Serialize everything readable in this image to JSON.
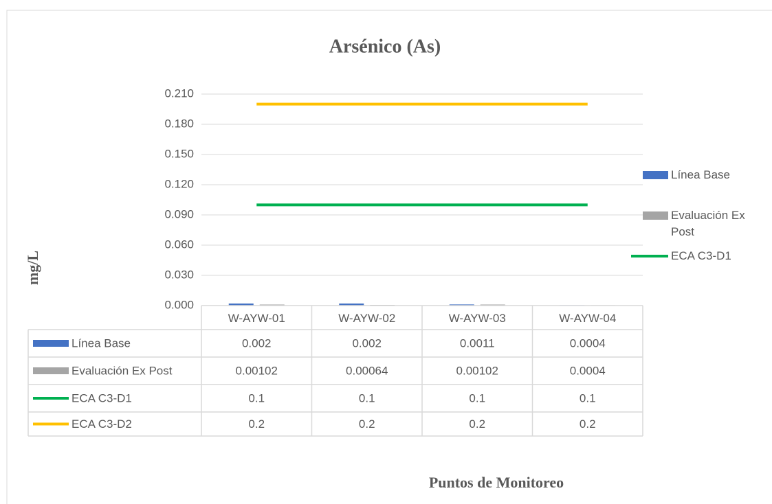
{
  "chart_data": {
    "type": "bar",
    "title": "Arsénico (As)",
    "y_label": "mg/L",
    "x_label": "Puntos de Monitoreo",
    "categories": [
      "W-AYW-01",
      "W-AYW-02",
      "W-AYW-03",
      "W-AYW-04"
    ],
    "series": [
      {
        "name": "Línea Base",
        "type": "bar",
        "color": "#4472c4",
        "values": [
          0.002,
          0.002,
          0.0011,
          0.0004
        ]
      },
      {
        "name": "Evaluación Ex Post",
        "type": "bar",
        "color": "#a5a5a5",
        "values": [
          0.00102,
          0.00064,
          0.00102,
          0.0004
        ]
      },
      {
        "name": "ECA C3-D1",
        "type": "line",
        "color": "#00b050",
        "values": [
          0.1,
          0.1,
          0.1,
          0.1
        ]
      },
      {
        "name": "ECA C3-D2",
        "type": "line",
        "color": "#ffc000",
        "values": [
          0.2,
          0.2,
          0.2,
          0.2
        ]
      }
    ],
    "ylim": [
      0,
      0.21
    ],
    "yticks": [
      {
        "value": 0,
        "label": "0.000"
      },
      {
        "value": 0.03,
        "label": "0.030"
      },
      {
        "value": 0.06,
        "label": "0.060"
      },
      {
        "value": 0.09,
        "label": "0.090"
      },
      {
        "value": 0.12,
        "label": "0.120"
      },
      {
        "value": 0.15,
        "label": "0.150"
      },
      {
        "value": 0.18,
        "label": "0.180"
      },
      {
        "value": 0.21,
        "label": "0.210"
      }
    ],
    "grid": true,
    "legend": "right",
    "data_table": true
  }
}
